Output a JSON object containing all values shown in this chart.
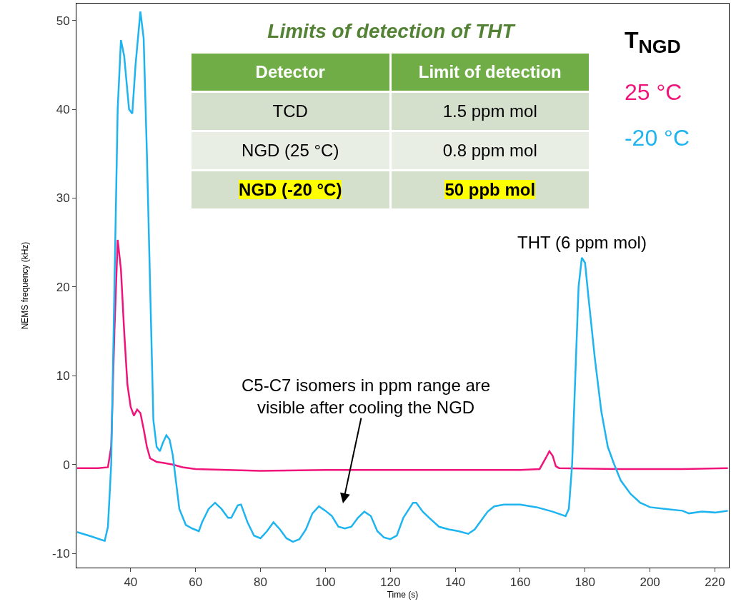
{
  "chart_data": [
    {
      "type": "line",
      "xlabel": "Time (s)",
      "ylabel": "NEMS frequency (kHz)",
      "legend_title": "T$_{NGD}$",
      "legend": "top right",
      "grid": false,
      "marker": "none",
      "line_style": "solid",
      "xlim": [
        23.3,
        224.3
      ],
      "xticks": [
        40,
        60,
        80,
        100,
        120,
        140,
        160,
        180,
        200,
        220
      ],
      "ylim": [
        -11.6,
        51.9
      ],
      "yticks": [
        -10,
        0,
        10,
        20,
        30,
        40,
        50
      ],
      "annotations": [
        {
          "text": "THT (6 ppm mol)",
          "x": 179,
          "y": 23.3
        },
        "C5-C7 isomers in ppm range are\nvisible after cooling the NGD"
      ],
      "series": [
        {
          "name": "25 °C",
          "color": "#f0147a",
          "x": [
            23.5,
            30,
            33,
            34,
            35,
            36,
            37,
            38,
            39,
            40,
            41,
            42,
            43,
            44,
            45,
            46,
            48,
            50,
            53,
            56,
            60,
            80,
            100,
            120,
            140,
            160,
            166,
            168,
            169,
            170,
            171,
            172,
            190,
            210,
            224
          ],
          "values": [
            -0.4,
            -0.4,
            -0.3,
            2,
            15,
            25.3,
            22,
            15,
            9,
            6.5,
            5.5,
            6.2,
            5.8,
            4,
            2,
            0.7,
            0.3,
            0.2,
            0,
            -0.3,
            -0.5,
            -0.7,
            -0.6,
            -0.6,
            -0.6,
            -0.6,
            -0.5,
            0.8,
            1.5,
            1,
            -0.2,
            -0.4,
            -0.5,
            -0.5,
            -0.4
          ]
        },
        {
          "name": "-20 °C",
          "color": "#1eb4f0",
          "x": [
            23.5,
            28,
            32,
            33,
            34,
            35,
            36,
            37,
            38,
            39.5,
            40.5,
            41.5,
            43,
            44,
            45,
            46,
            47,
            48,
            49,
            50,
            51,
            52,
            53,
            54,
            55,
            57,
            59,
            61,
            62,
            64,
            66,
            68,
            70,
            71,
            73,
            74,
            76,
            78,
            80,
            82,
            84,
            86,
            88,
            90,
            92,
            94,
            96,
            98,
            100,
            102,
            104,
            106,
            108,
            110,
            112,
            114,
            116,
            118,
            120,
            122,
            124,
            127,
            128,
            130,
            132,
            135,
            138,
            141,
            144,
            146,
            148,
            150,
            152,
            155,
            160,
            165,
            170,
            174,
            175,
            176,
            177,
            178,
            179,
            180,
            181,
            183,
            185,
            187,
            189,
            191,
            194,
            197,
            200,
            205,
            210,
            212,
            216,
            220,
            224
          ],
          "values": [
            -7.6,
            -8.1,
            -8.6,
            -7,
            0,
            20,
            40,
            47.8,
            46,
            40,
            39.5,
            45,
            51,
            48,
            35,
            20,
            5,
            2,
            1.5,
            2.5,
            3.3,
            2.8,
            1,
            -2,
            -5,
            -6.8,
            -7.2,
            -7.5,
            -6.5,
            -5,
            -4.3,
            -5,
            -6,
            -6,
            -4.6,
            -4.5,
            -6.5,
            -8,
            -8.3,
            -7.5,
            -6.5,
            -7.3,
            -8.3,
            -8.7,
            -8.4,
            -7.3,
            -5.5,
            -4.7,
            -5.2,
            -5.8,
            -7,
            -7.2,
            -7,
            -6,
            -5.3,
            -5.8,
            -7.5,
            -8.2,
            -8.4,
            -8,
            -6,
            -4.3,
            -4.3,
            -5.3,
            -6,
            -7,
            -7.3,
            -7.5,
            -7.8,
            -7.3,
            -6.3,
            -5.3,
            -4.7,
            -4.5,
            -4.5,
            -4.8,
            -5.3,
            -5.8,
            -5,
            0,
            10,
            20,
            23.3,
            22.7,
            19,
            12,
            6,
            2,
            0,
            -1.8,
            -3.3,
            -4.3,
            -4.8,
            -5,
            -5.2,
            -5.5,
            -5.3,
            -5.4,
            -5.2
          ]
        }
      ]
    },
    {
      "type": "other",
      "title": "Limits of detection of THT",
      "annotations": [
        "Detector",
        "Limit of detection",
        "TCD",
        "1.5 ppm mol",
        "NGD (25 °C)",
        "0.8 ppm mol",
        "NGD (-20 °C)",
        "50 ppb mol"
      ]
    }
  ]
}
